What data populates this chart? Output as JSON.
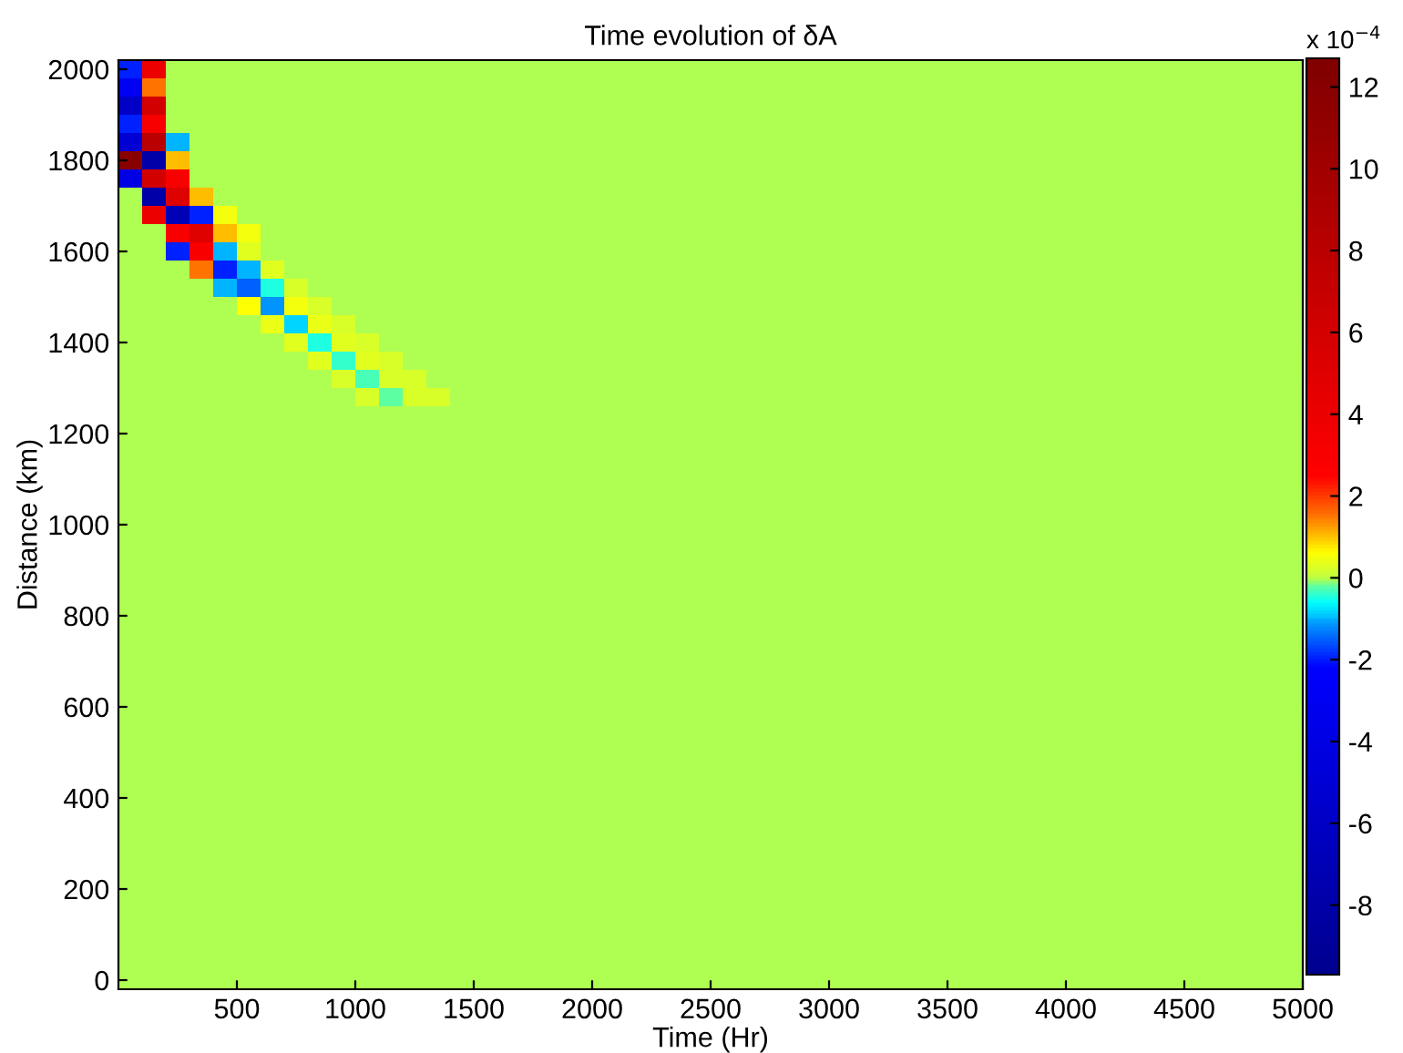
{
  "chart_data": {
    "type": "heatmap",
    "title": "Time evolution of δA",
    "xlabel": "Time (Hr)",
    "ylabel": "Distance (km)",
    "clabel": "x 10$^{−4}$",
    "x": [
      50,
      150,
      250,
      350,
      450,
      550,
      650,
      750,
      850,
      950,
      1050,
      1150,
      1250,
      1350,
      1450,
      1550,
      1650,
      1750,
      1850,
      1950,
      2050,
      2150,
      2250,
      2350,
      2450,
      2550,
      2650,
      2750,
      2850,
      2950,
      3050,
      3150,
      3250,
      3350,
      3450,
      3550,
      3650,
      3750,
      3850,
      3950,
      4050,
      4150,
      4250,
      4350,
      4450,
      4550,
      4650,
      4750,
      4850,
      4950
    ],
    "y": [
      2000,
      1960,
      1920,
      1880,
      1840,
      1800,
      1760,
      1720,
      1680,
      1640,
      1600,
      1560,
      1520,
      1480,
      1440,
      1400,
      1360,
      1320,
      1280,
      1240,
      1200,
      1160,
      1120,
      1080,
      1040,
      1000,
      960,
      920,
      880,
      840,
      800,
      760,
      720,
      680,
      640,
      600,
      560,
      520,
      480,
      440,
      400,
      360,
      320,
      280,
      240,
      200,
      160,
      120,
      80,
      40,
      0
    ],
    "cells": [
      [
        -2,
        4,
        0,
        0,
        0,
        0,
        0,
        0,
        0,
        0,
        0,
        0,
        0,
        0,
        0,
        0,
        0,
        0,
        0,
        0,
        0,
        0,
        0,
        0,
        0,
        0,
        0,
        0,
        0,
        0,
        0,
        0,
        0,
        0,
        0,
        0,
        0,
        0,
        0,
        0,
        0,
        0,
        0,
        0,
        0,
        0,
        0,
        0,
        0,
        0
      ],
      [
        -3,
        1.5,
        0,
        0,
        0,
        0,
        0,
        0,
        0,
        0,
        0,
        0,
        0,
        0,
        0,
        0,
        0,
        0,
        0,
        0,
        0,
        0,
        0,
        0,
        0,
        0,
        0,
        0,
        0,
        0,
        0,
        0,
        0,
        0,
        0,
        0,
        0,
        0,
        0,
        0,
        0,
        0,
        0,
        0,
        0,
        0,
        0,
        0,
        0,
        0
      ],
      [
        -6,
        6,
        0,
        0,
        0,
        0,
        0,
        0,
        0,
        0,
        0,
        0,
        0,
        0,
        0,
        0,
        0,
        0,
        0,
        0,
        0,
        0,
        0,
        0,
        0,
        0,
        0,
        0,
        0,
        0,
        0,
        0,
        0,
        0,
        0,
        0,
        0,
        0,
        0,
        0,
        0,
        0,
        0,
        0,
        0,
        0,
        0,
        0,
        0,
        0
      ],
      [
        -2,
        3,
        0,
        0,
        0,
        0,
        0,
        0,
        0,
        0,
        0,
        0,
        0,
        0,
        0,
        0,
        0,
        0,
        0,
        0,
        0,
        0,
        0,
        0,
        0,
        0,
        0,
        0,
        0,
        0,
        0,
        0,
        0,
        0,
        0,
        0,
        0,
        0,
        0,
        0,
        0,
        0,
        0,
        0,
        0,
        0,
        0,
        0,
        0,
        0
      ],
      [
        -5,
        8,
        -1,
        0,
        0,
        0,
        0,
        0,
        0,
        0,
        0,
        0,
        0,
        0,
        0,
        0,
        0,
        0,
        0,
        0,
        0,
        0,
        0,
        0,
        0,
        0,
        0,
        0,
        0,
        0,
        0,
        0,
        0,
        0,
        0,
        0,
        0,
        0,
        0,
        0,
        0,
        0,
        0,
        0,
        0,
        0,
        0,
        0,
        0,
        0
      ],
      [
        12,
        -8,
        1,
        0,
        0,
        0,
        0,
        0,
        0,
        0,
        0,
        0,
        0,
        0,
        0,
        0,
        0,
        0,
        0,
        0,
        0,
        0,
        0,
        0,
        0,
        0,
        0,
        0,
        0,
        0,
        0,
        0,
        0,
        0,
        0,
        0,
        0,
        0,
        0,
        0,
        0,
        0,
        0,
        0,
        0,
        0,
        0,
        0,
        0,
        0
      ],
      [
        -4,
        6,
        3,
        0,
        0,
        0,
        0,
        0,
        0,
        0,
        0,
        0,
        0,
        0,
        0,
        0,
        0,
        0,
        0,
        0,
        0,
        0,
        0,
        0,
        0,
        0,
        0,
        0,
        0,
        0,
        0,
        0,
        0,
        0,
        0,
        0,
        0,
        0,
        0,
        0,
        0,
        0,
        0,
        0,
        0,
        0,
        0,
        0,
        0,
        0
      ],
      [
        0,
        -8,
        5,
        1,
        0,
        0,
        0,
        0,
        0,
        0,
        0,
        0,
        0,
        0,
        0,
        0,
        0,
        0,
        0,
        0,
        0,
        0,
        0,
        0,
        0,
        0,
        0,
        0,
        0,
        0,
        0,
        0,
        0,
        0,
        0,
        0,
        0,
        0,
        0,
        0,
        0,
        0,
        0,
        0,
        0,
        0,
        0,
        0,
        0,
        0
      ],
      [
        0,
        4,
        -7,
        -2,
        0.5,
        0,
        0,
        0,
        0,
        0,
        0,
        0,
        0,
        0,
        0,
        0,
        0,
        0,
        0,
        0,
        0,
        0,
        0,
        0,
        0,
        0,
        0,
        0,
        0,
        0,
        0,
        0,
        0,
        0,
        0,
        0,
        0,
        0,
        0,
        0,
        0,
        0,
        0,
        0,
        0,
        0,
        0,
        0,
        0,
        0
      ],
      [
        0,
        0,
        3,
        5,
        1,
        0.5,
        0,
        0,
        0,
        0,
        0,
        0,
        0,
        0,
        0,
        0,
        0,
        0,
        0,
        0,
        0,
        0,
        0,
        0,
        0,
        0,
        0,
        0,
        0,
        0,
        0,
        0,
        0,
        0,
        0,
        0,
        0,
        0,
        0,
        0,
        0,
        0,
        0,
        0,
        0,
        0,
        0,
        0,
        0,
        0
      ],
      [
        0,
        0,
        -2,
        3,
        -1,
        0.3,
        0,
        0,
        0,
        0,
        0,
        0,
        0,
        0,
        0,
        0,
        0,
        0,
        0,
        0,
        0,
        0,
        0,
        0,
        0,
        0,
        0,
        0,
        0,
        0,
        0,
        0,
        0,
        0,
        0,
        0,
        0,
        0,
        0,
        0,
        0,
        0,
        0,
        0,
        0,
        0,
        0,
        0,
        0,
        0
      ],
      [
        0,
        0,
        0,
        1.5,
        -2,
        -1,
        0.3,
        0,
        0,
        0,
        0,
        0,
        0,
        0,
        0,
        0,
        0,
        0,
        0,
        0,
        0,
        0,
        0,
        0,
        0,
        0,
        0,
        0,
        0,
        0,
        0,
        0,
        0,
        0,
        0,
        0,
        0,
        0,
        0,
        0,
        0,
        0,
        0,
        0,
        0,
        0,
        0,
        0,
        0,
        0
      ],
      [
        0,
        0,
        0,
        0,
        -1,
        -1.5,
        -0.5,
        0.2,
        0,
        0,
        0,
        0,
        0,
        0,
        0,
        0,
        0,
        0,
        0,
        0,
        0,
        0,
        0,
        0,
        0,
        0,
        0,
        0,
        0,
        0,
        0,
        0,
        0,
        0,
        0,
        0,
        0,
        0,
        0,
        0,
        0,
        0,
        0,
        0,
        0,
        0,
        0,
        0,
        0,
        0
      ],
      [
        0,
        0,
        0,
        0,
        0,
        0.6,
        -1.2,
        0.5,
        0.2,
        0,
        0,
        0,
        0,
        0,
        0,
        0,
        0,
        0,
        0,
        0,
        0,
        0,
        0,
        0,
        0,
        0,
        0,
        0,
        0,
        0,
        0,
        0,
        0,
        0,
        0,
        0,
        0,
        0,
        0,
        0,
        0,
        0,
        0,
        0,
        0,
        0,
        0,
        0,
        0,
        0
      ],
      [
        0,
        0,
        0,
        0,
        0,
        0,
        0.4,
        -0.8,
        0.4,
        0.2,
        0,
        0,
        0,
        0,
        0,
        0,
        0,
        0,
        0,
        0,
        0,
        0,
        0,
        0,
        0,
        0,
        0,
        0,
        0,
        0,
        0,
        0,
        0,
        0,
        0,
        0,
        0,
        0,
        0,
        0,
        0,
        0,
        0,
        0,
        0,
        0,
        0,
        0,
        0,
        0
      ],
      [
        0,
        0,
        0,
        0,
        0,
        0,
        0,
        0.3,
        -0.5,
        0.3,
        0.2,
        0,
        0,
        0,
        0,
        0,
        0,
        0,
        0,
        0,
        0,
        0,
        0,
        0,
        0,
        0,
        0,
        0,
        0,
        0,
        0,
        0,
        0,
        0,
        0,
        0,
        0,
        0,
        0,
        0,
        0,
        0,
        0,
        0,
        0,
        0,
        0,
        0,
        0,
        0
      ],
      [
        0,
        0,
        0,
        0,
        0,
        0,
        0,
        0,
        0.3,
        -0.4,
        0.3,
        0.2,
        0,
        0,
        0,
        0,
        0,
        0,
        0,
        0,
        0,
        0,
        0,
        0,
        0,
        0,
        0,
        0,
        0,
        0,
        0,
        0,
        0,
        0,
        0,
        0,
        0,
        0,
        0,
        0,
        0,
        0,
        0,
        0,
        0,
        0,
        0,
        0,
        0,
        0
      ],
      [
        0,
        0,
        0,
        0,
        0,
        0,
        0,
        0,
        0,
        0.2,
        -0.3,
        0.2,
        0.2,
        0,
        0,
        0,
        0,
        0,
        0,
        0,
        0,
        0,
        0,
        0,
        0,
        0,
        0,
        0,
        0,
        0,
        0,
        0,
        0,
        0,
        0,
        0,
        0,
        0,
        0,
        0,
        0,
        0,
        0,
        0,
        0,
        0,
        0,
        0,
        0,
        0
      ],
      [
        0,
        0,
        0,
        0,
        0,
        0,
        0,
        0,
        0,
        0,
        0.2,
        -0.2,
        0.2,
        0.2,
        0,
        0,
        0,
        0,
        0,
        0,
        0,
        0,
        0,
        0,
        0,
        0,
        0,
        0,
        0,
        0,
        0,
        0,
        0,
        0,
        0,
        0,
        0,
        0,
        0,
        0,
        0,
        0,
        0,
        0,
        0,
        0,
        0,
        0,
        0,
        0
      ],
      [
        0,
        0,
        0,
        0,
        0,
        0,
        0,
        0,
        0,
        0,
        0,
        0,
        0,
        0,
        0,
        0,
        0,
        0,
        0,
        0,
        0,
        0,
        0,
        0,
        0,
        0,
        0,
        0,
        0,
        0,
        0,
        0,
        0,
        0,
        0,
        0,
        0,
        0,
        0,
        0,
        0,
        0,
        0,
        0,
        0,
        0,
        0,
        0,
        0,
        0
      ],
      [
        0,
        0,
        0,
        0,
        0,
        0,
        0,
        0,
        0,
        0,
        0,
        0,
        0,
        0,
        0,
        0,
        0,
        0,
        0,
        0,
        0,
        0,
        0,
        0,
        0,
        0,
        0,
        0,
        0,
        0,
        0,
        0,
        0,
        0,
        0,
        0,
        0,
        0,
        0,
        0,
        0,
        0,
        0,
        0,
        0,
        0,
        0,
        0,
        0,
        0
      ],
      [
        0,
        0,
        0,
        0,
        0,
        0,
        0,
        0,
        0,
        0,
        0,
        0,
        0,
        0,
        0,
        0,
        0,
        0,
        0,
        0,
        0,
        0,
        0,
        0,
        0,
        0,
        0,
        0,
        0,
        0,
        0,
        0,
        0,
        0,
        0,
        0,
        0,
        0,
        0,
        0,
        0,
        0,
        0,
        0,
        0,
        0,
        0,
        0,
        0,
        0
      ],
      [
        0,
        0,
        0,
        0,
        0,
        0,
        0,
        0,
        0,
        0,
        0,
        0,
        0,
        0,
        0,
        0,
        0,
        0,
        0,
        0,
        0,
        0,
        0,
        0,
        0,
        0,
        0,
        0,
        0,
        0,
        0,
        0,
        0,
        0,
        0,
        0,
        0,
        0,
        0,
        0,
        0,
        0,
        0,
        0,
        0,
        0,
        0,
        0,
        0,
        0
      ],
      [
        0,
        0,
        0,
        0,
        0,
        0,
        0,
        0,
        0,
        0,
        0,
        0,
        0,
        0,
        0,
        0,
        0,
        0,
        0,
        0,
        0,
        0,
        0,
        0,
        0,
        0,
        0,
        0,
        0,
        0,
        0,
        0,
        0,
        0,
        0,
        0,
        0,
        0,
        0,
        0,
        0,
        0,
        0,
        0,
        0,
        0,
        0,
        0,
        0,
        0
      ],
      [
        0,
        0,
        0,
        0,
        0,
        0,
        0,
        0,
        0,
        0,
        0,
        0,
        0,
        0,
        0,
        0,
        0,
        0,
        0,
        0,
        0,
        0,
        0,
        0,
        0,
        0,
        0,
        0,
        0,
        0,
        0,
        0,
        0,
        0,
        0,
        0,
        0,
        0,
        0,
        0,
        0,
        0,
        0,
        0,
        0,
        0,
        0,
        0,
        0,
        0
      ],
      [
        0,
        0,
        0,
        0,
        0,
        0,
        0,
        0,
        0,
        0,
        0,
        0,
        0,
        0,
        0,
        0,
        0,
        0,
        0,
        0,
        0,
        0,
        0,
        0,
        0,
        0,
        0,
        0,
        0,
        0,
        0,
        0,
        0,
        0,
        0,
        0,
        0,
        0,
        0,
        0,
        0,
        0,
        0,
        0,
        0,
        0,
        0,
        0,
        0,
        0
      ],
      [
        0,
        0,
        0,
        0,
        0,
        0,
        0,
        0,
        0,
        0,
        0,
        0,
        0,
        0,
        0,
        0,
        0,
        0,
        0,
        0,
        0,
        0,
        0,
        0,
        0,
        0,
        0,
        0,
        0,
        0,
        0,
        0,
        0,
        0,
        0,
        0,
        0,
        0,
        0,
        0,
        0,
        0,
        0,
        0,
        0,
        0,
        0,
        0,
        0,
        0
      ],
      [
        0,
        0,
        0,
        0,
        0,
        0,
        0,
        0,
        0,
        0,
        0,
        0,
        0,
        0,
        0,
        0,
        0,
        0,
        0,
        0,
        0,
        0,
        0,
        0,
        0,
        0,
        0,
        0,
        0,
        0,
        0,
        0,
        0,
        0,
        0,
        0,
        0,
        0,
        0,
        0,
        0,
        0,
        0,
        0,
        0,
        0,
        0,
        0,
        0,
        0
      ],
      [
        0,
        0,
        0,
        0,
        0,
        0,
        0,
        0,
        0,
        0,
        0,
        0,
        0,
        0,
        0,
        0,
        0,
        0,
        0,
        0,
        0,
        0,
        0,
        0,
        0,
        0,
        0,
        0,
        0,
        0,
        0,
        0,
        0,
        0,
        0,
        0,
        0,
        0,
        0,
        0,
        0,
        0,
        0,
        0,
        0,
        0,
        0,
        0,
        0,
        0
      ],
      [
        0,
        0,
        0,
        0,
        0,
        0,
        0,
        0,
        0,
        0,
        0,
        0,
        0,
        0,
        0,
        0,
        0,
        0,
        0,
        0,
        0,
        0,
        0,
        0,
        0,
        0,
        0,
        0,
        0,
        0,
        0,
        0,
        0,
        0,
        0,
        0,
        0,
        0,
        0,
        0,
        0,
        0,
        0,
        0,
        0,
        0,
        0,
        0,
        0,
        0
      ],
      [
        0,
        0,
        0,
        0,
        0,
        0,
        0,
        0,
        0,
        0,
        0,
        0,
        0,
        0,
        0,
        0,
        0,
        0,
        0,
        0,
        0,
        0,
        0,
        0,
        0,
        0,
        0,
        0,
        0,
        0,
        0,
        0,
        0,
        0,
        0,
        0,
        0,
        0,
        0,
        0,
        0,
        0,
        0,
        0,
        0,
        0,
        0,
        0,
        0,
        0
      ],
      [
        0,
        0,
        0,
        0,
        0,
        0,
        0,
        0,
        0,
        0,
        0,
        0,
        0,
        0,
        0,
        0,
        0,
        0,
        0,
        0,
        0,
        0,
        0,
        0,
        0,
        0,
        0,
        0,
        0,
        0,
        0,
        0,
        0,
        0,
        0,
        0,
        0,
        0,
        0,
        0,
        0,
        0,
        0,
        0,
        0,
        0,
        0,
        0,
        0,
        0
      ],
      [
        0,
        0,
        0,
        0,
        0,
        0,
        0,
        0,
        0,
        0,
        0,
        0,
        0,
        0,
        0,
        0,
        0,
        0,
        0,
        0,
        0,
        0,
        0,
        0,
        0,
        0,
        0,
        0,
        0,
        0,
        0,
        0,
        0,
        0,
        0,
        0,
        0,
        0,
        0,
        0,
        0,
        0,
        0,
        0,
        0,
        0,
        0,
        0,
        0,
        0
      ],
      [
        0,
        0,
        0,
        0,
        0,
        0,
        0,
        0,
        0,
        0,
        0,
        0,
        0,
        0,
        0,
        0,
        0,
        0,
        0,
        0,
        0,
        0,
        0,
        0,
        0,
        0,
        0,
        0,
        0,
        0,
        0,
        0,
        0,
        0,
        0,
        0,
        0,
        0,
        0,
        0,
        0,
        0,
        0,
        0,
        0,
        0,
        0,
        0,
        0,
        0
      ],
      [
        0,
        0,
        0,
        0,
        0,
        0,
        0,
        0,
        0,
        0,
        0,
        0,
        0,
        0,
        0,
        0,
        0,
        0,
        0,
        0,
        0,
        0,
        0,
        0,
        0,
        0,
        0,
        0,
        0,
        0,
        0,
        0,
        0,
        0,
        0,
        0,
        0,
        0,
        0,
        0,
        0,
        0,
        0,
        0,
        0,
        0,
        0,
        0,
        0,
        0
      ],
      [
        0,
        0,
        0,
        0,
        0,
        0,
        0,
        0,
        0,
        0,
        0,
        0,
        0,
        0,
        0,
        0,
        0,
        0,
        0,
        0,
        0,
        0,
        0,
        0,
        0,
        0,
        0,
        0,
        0,
        0,
        0,
        0,
        0,
        0,
        0,
        0,
        0,
        0,
        0,
        0,
        0,
        0,
        0,
        0,
        0,
        0,
        0,
        0,
        0,
        0
      ],
      [
        0,
        0,
        0,
        0,
        0,
        0,
        0,
        0,
        0,
        0,
        0,
        0,
        0,
        0,
        0,
        0,
        0,
        0,
        0,
        0,
        0,
        0,
        0,
        0,
        0,
        0,
        0,
        0,
        0,
        0,
        0,
        0,
        0,
        0,
        0,
        0,
        0,
        0,
        0,
        0,
        0,
        0,
        0,
        0,
        0,
        0,
        0,
        0,
        0,
        0
      ],
      [
        0,
        0,
        0,
        0,
        0,
        0,
        0,
        0,
        0,
        0,
        0,
        0,
        0,
        0,
        0,
        0,
        0,
        0,
        0,
        0,
        0,
        0,
        0,
        0,
        0,
        0,
        0,
        0,
        0,
        0,
        0,
        0,
        0,
        0,
        0,
        0,
        0,
        0,
        0,
        0,
        0,
        0,
        0,
        0,
        0,
        0,
        0,
        0,
        0,
        0
      ],
      [
        0,
        0,
        0,
        0,
        0,
        0,
        0,
        0,
        0,
        0,
        0,
        0,
        0,
        0,
        0,
        0,
        0,
        0,
        0,
        0,
        0,
        0,
        0,
        0,
        0,
        0,
        0,
        0,
        0,
        0,
        0,
        0,
        0,
        0,
        0,
        0,
        0,
        0,
        0,
        0,
        0,
        0,
        0,
        0,
        0,
        0,
        0,
        0,
        0,
        0
      ],
      [
        0,
        0,
        0,
        0,
        0,
        0,
        0,
        0,
        0,
        0,
        0,
        0,
        0,
        0,
        0,
        0,
        0,
        0,
        0,
        0,
        0,
        0,
        0,
        0,
        0,
        0,
        0,
        0,
        0,
        0,
        0,
        0,
        0,
        0,
        0,
        0,
        0,
        0,
        0,
        0,
        0,
        0,
        0,
        0,
        0,
        0,
        0,
        0,
        0,
        0
      ],
      [
        0,
        0,
        0,
        0,
        0,
        0,
        0,
        0,
        0,
        0,
        0,
        0,
        0,
        0,
        0,
        0,
        0,
        0,
        0,
        0,
        0,
        0,
        0,
        0,
        0,
        0,
        0,
        0,
        0,
        0,
        0,
        0,
        0,
        0,
        0,
        0,
        0,
        0,
        0,
        0,
        0,
        0,
        0,
        0,
        0,
        0,
        0,
        0,
        0,
        0
      ],
      [
        0,
        0,
        0,
        0,
        0,
        0,
        0,
        0,
        0,
        0,
        0,
        0,
        0,
        0,
        0,
        0,
        0,
        0,
        0,
        0,
        0,
        0,
        0,
        0,
        0,
        0,
        0,
        0,
        0,
        0,
        0,
        0,
        0,
        0,
        0,
        0,
        0,
        0,
        0,
        0,
        0,
        0,
        0,
        0,
        0,
        0,
        0,
        0,
        0,
        0
      ],
      [
        0,
        0,
        0,
        0,
        0,
        0,
        0,
        0,
        0,
        0,
        0,
        0,
        0,
        0,
        0,
        0,
        0,
        0,
        0,
        0,
        0,
        0,
        0,
        0,
        0,
        0,
        0,
        0,
        0,
        0,
        0,
        0,
        0,
        0,
        0,
        0,
        0,
        0,
        0,
        0,
        0,
        0,
        0,
        0,
        0,
        0,
        0,
        0,
        0,
        0
      ],
      [
        0,
        0,
        0,
        0,
        0,
        0,
        0,
        0,
        0,
        0,
        0,
        0,
        0,
        0,
        0,
        0,
        0,
        0,
        0,
        0,
        0,
        0,
        0,
        0,
        0,
        0,
        0,
        0,
        0,
        0,
        0,
        0,
        0,
        0,
        0,
        0,
        0,
        0,
        0,
        0,
        0,
        0,
        0,
        0,
        0,
        0,
        0,
        0,
        0,
        0
      ],
      [
        0,
        0,
        0,
        0,
        0,
        0,
        0,
        0,
        0,
        0,
        0,
        0,
        0,
        0,
        0,
        0,
        0,
        0,
        0,
        0,
        0,
        0,
        0,
        0,
        0,
        0,
        0,
        0,
        0,
        0,
        0,
        0,
        0,
        0,
        0,
        0,
        0,
        0,
        0,
        0,
        0,
        0,
        0,
        0,
        0,
        0,
        0,
        0,
        0,
        0
      ],
      [
        0,
        0,
        0,
        0,
        0,
        0,
        0,
        0,
        0,
        0,
        0,
        0,
        0,
        0,
        0,
        0,
        0,
        0,
        0,
        0,
        0,
        0,
        0,
        0,
        0,
        0,
        0,
        0,
        0,
        0,
        0,
        0,
        0,
        0,
        0,
        0,
        0,
        0,
        0,
        0,
        0,
        0,
        0,
        0,
        0,
        0,
        0,
        0,
        0,
        0
      ],
      [
        0,
        0,
        0,
        0,
        0,
        0,
        0,
        0,
        0,
        0,
        0,
        0,
        0,
        0,
        0,
        0,
        0,
        0,
        0,
        0,
        0,
        0,
        0,
        0,
        0,
        0,
        0,
        0,
        0,
        0,
        0,
        0,
        0,
        0,
        0,
        0,
        0,
        0,
        0,
        0,
        0,
        0,
        0,
        0,
        0,
        0,
        0,
        0,
        0,
        0
      ],
      [
        0,
        0,
        0,
        0,
        0,
        0,
        0,
        0,
        0,
        0,
        0,
        0,
        0,
        0,
        0,
        0,
        0,
        0,
        0,
        0,
        0,
        0,
        0,
        0,
        0,
        0,
        0,
        0,
        0,
        0,
        0,
        0,
        0,
        0,
        0,
        0,
        0,
        0,
        0,
        0,
        0,
        0,
        0,
        0,
        0,
        0,
        0,
        0,
        0,
        0
      ],
      [
        0,
        0,
        0,
        0,
        0,
        0,
        0,
        0,
        0,
        0,
        0,
        0,
        0,
        0,
        0,
        0,
        0,
        0,
        0,
        0,
        0,
        0,
        0,
        0,
        0,
        0,
        0,
        0,
        0,
        0,
        0,
        0,
        0,
        0,
        0,
        0,
        0,
        0,
        0,
        0,
        0,
        0,
        0,
        0,
        0,
        0,
        0,
        0,
        0,
        0
      ],
      [
        0,
        0,
        0,
        0,
        0,
        0,
        0,
        0,
        0,
        0,
        0,
        0,
        0,
        0,
        0,
        0,
        0,
        0,
        0,
        0,
        0,
        0,
        0,
        0,
        0,
        0,
        0,
        0,
        0,
        0,
        0,
        0,
        0,
        0,
        0,
        0,
        0,
        0,
        0,
        0,
        0,
        0,
        0,
        0,
        0,
        0,
        0,
        0,
        0,
        0
      ],
      [
        0,
        0,
        0,
        0,
        0,
        0,
        0,
        0,
        0,
        0,
        0,
        0,
        0,
        0,
        0,
        0,
        0,
        0,
        0,
        0,
        0,
        0,
        0,
        0,
        0,
        0,
        0,
        0,
        0,
        0,
        0,
        0,
        0,
        0,
        0,
        0,
        0,
        0,
        0,
        0,
        0,
        0,
        0,
        0,
        0,
        0,
        0,
        0,
        0,
        0
      ]
    ],
    "xlim": [
      0,
      5000
    ],
    "xticks": [
      500,
      1000,
      1500,
      2000,
      2500,
      3000,
      3500,
      4000,
      4500,
      5000
    ],
    "ylim": [
      -20,
      2020
    ],
    "yticks": [
      0,
      200,
      400,
      600,
      800,
      1000,
      1200,
      1400,
      1600,
      1800,
      2000
    ],
    "clim": [
      -9.7,
      12.7
    ],
    "cticks": [
      -8,
      -6,
      -4,
      -2,
      0,
      2,
      4,
      6,
      8,
      10,
      12
    ]
  }
}
